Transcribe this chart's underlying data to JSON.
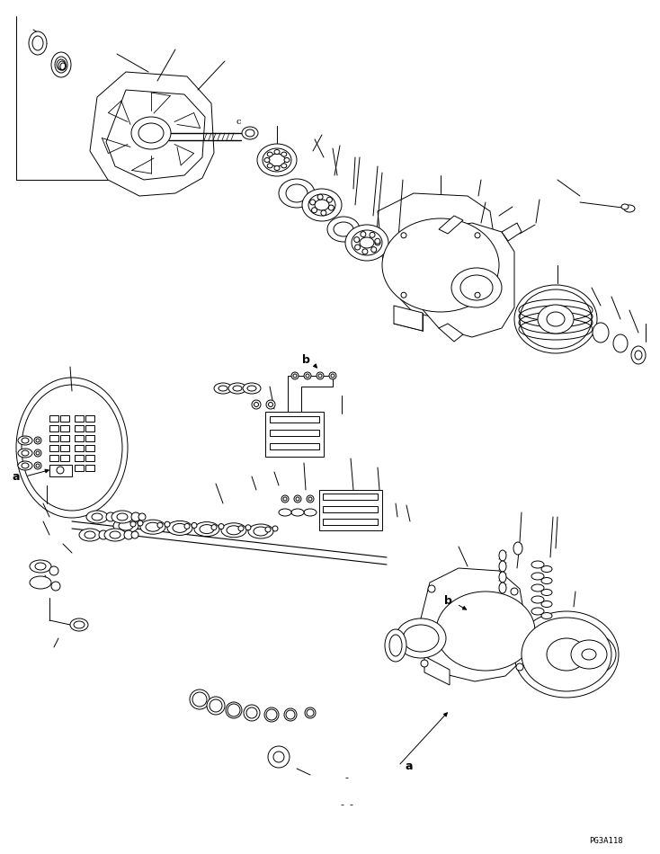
{
  "bg_color": "#ffffff",
  "line_color": "#000000",
  "page_code": "PG3A118",
  "label_a": "a",
  "label_b": "b",
  "fig_width": 7.34,
  "fig_height": 9.5,
  "dpi": 100
}
